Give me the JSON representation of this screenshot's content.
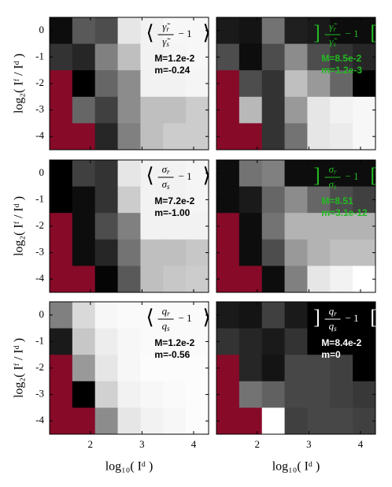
{
  "chart_data": [
    {
      "type": "heatmap",
      "x": [
        1.43,
        1.87,
        2.31,
        2.75,
        3.19,
        3.63,
        4.07
      ],
      "y": [
        0,
        -1,
        -2,
        -3,
        -4
      ],
      "xlim": [
        1.21,
        4.29
      ],
      "ylim": [
        -4.5,
        0.5
      ],
      "xticks": [
        2,
        3,
        4
      ],
      "yticks": [
        0,
        -1,
        -2,
        -3,
        -4
      ],
      "cmap": "gray",
      "missing_color": "#870a28",
      "ylabel": "log₂( Iᶠ / Iᵈ )",
      "values": [
        [
          0.05,
          0.35,
          0.3,
          0.9,
          0.95,
          0.97,
          0.97
        ],
        [
          0.2,
          0.15,
          0.5,
          0.75,
          0.95,
          0.96,
          0.97
        ],
        [
          null,
          0.0,
          0.4,
          0.55,
          0.95,
          0.95,
          0.96
        ],
        [
          null,
          0.4,
          0.25,
          0.55,
          0.75,
          0.75,
          0.8
        ],
        [
          null,
          null,
          0.15,
          0.5,
          0.75,
          0.8,
          0.8
        ]
      ],
      "annotation": {
        "open": "⟨",
        "close": "⟩",
        "num": "γ̃",
        "num_sub": "r",
        "den": "γ̃",
        "den_sub": "s",
        "rest": "− 1",
        "M": "M=1.2e-2",
        "m": "m=-0.24",
        "color": "#000000"
      }
    },
    {
      "type": "heatmap",
      "x": [
        1.43,
        1.87,
        2.31,
        2.75,
        3.19,
        3.63,
        4.07
      ],
      "y": [
        0,
        -1,
        -2,
        -3,
        -4
      ],
      "xlim": [
        1.21,
        4.29
      ],
      "ylim": [
        -4.5,
        0.5
      ],
      "xticks": [
        2,
        3,
        4
      ],
      "yticks": [
        0,
        -1,
        -2,
        -3,
        -4
      ],
      "cmap": "gray",
      "missing_color": "#870a28",
      "values": [
        [
          0.1,
          0.08,
          0.45,
          0.12,
          0.1,
          0.05,
          0.05
        ],
        [
          0.3,
          0.05,
          0.3,
          0.55,
          0.3,
          0.2,
          0.15
        ],
        [
          null,
          0.3,
          0.2,
          0.75,
          0.6,
          0.4,
          0.0
        ],
        [
          null,
          0.72,
          0.2,
          0.6,
          0.9,
          0.95,
          0.97
        ],
        [
          null,
          null,
          0.2,
          0.45,
          0.9,
          0.92,
          0.97
        ]
      ],
      "annotation": {
        "open": "]",
        "close": "[",
        "num": "γ̃",
        "num_sub": "r",
        "den": "γ̃",
        "den_sub": "s",
        "rest": "− 1",
        "M": "M=8.5e-2",
        "m": "m=1.2e-3",
        "color": "#22bb22"
      }
    },
    {
      "type": "heatmap",
      "x": [
        1.43,
        1.87,
        2.31,
        2.75,
        3.19,
        3.63,
        4.07
      ],
      "y": [
        0,
        -1,
        -2,
        -3,
        -4
      ],
      "xlim": [
        1.21,
        4.29
      ],
      "ylim": [
        -4.5,
        0.5
      ],
      "xticks": [
        2,
        3,
        4
      ],
      "yticks": [
        0,
        -1,
        -2,
        -3,
        -4
      ],
      "cmap": "gray",
      "missing_color": "#870a28",
      "ylabel": "log₂( Iᶠ / Iᵈ )",
      "values": [
        [
          0.0,
          0.25,
          0.2,
          0.9,
          0.95,
          0.95,
          0.96
        ],
        [
          0.0,
          0.05,
          0.2,
          0.8,
          0.95,
          0.95,
          0.96
        ],
        [
          null,
          0.05,
          0.3,
          0.5,
          0.95,
          0.95,
          0.95
        ],
        [
          null,
          0.05,
          0.15,
          0.45,
          0.75,
          0.75,
          0.78
        ],
        [
          null,
          null,
          0.02,
          0.35,
          0.75,
          0.78,
          0.8
        ]
      ],
      "annotation": {
        "open": "⟨",
        "close": "⟩",
        "num": "σ",
        "num_sub": "r",
        "den": "σ",
        "den_sub": "s",
        "rest": "− 1",
        "M": "M=7.2e-2",
        "m": "m=-1.00",
        "color": "#000000"
      }
    },
    {
      "type": "heatmap",
      "x": [
        1.43,
        1.87,
        2.31,
        2.75,
        3.19,
        3.63,
        4.07
      ],
      "y": [
        0,
        -1,
        -2,
        -3,
        -4
      ],
      "xlim": [
        1.21,
        4.29
      ],
      "ylim": [
        -4.5,
        0.5
      ],
      "xticks": [
        2,
        3,
        4
      ],
      "yticks": [
        0,
        -1,
        -2,
        -3,
        -4
      ],
      "cmap": "gray",
      "missing_color": "#870a28",
      "values": [
        [
          0.05,
          0.45,
          0.5,
          0.05,
          0.05,
          0.05,
          0.05
        ],
        [
          0.05,
          0.1,
          0.4,
          0.55,
          0.4,
          0.3,
          0.25
        ],
        [
          null,
          0.05,
          0.45,
          0.7,
          0.7,
          0.7,
          0.7
        ],
        [
          null,
          0.05,
          0.3,
          0.6,
          0.7,
          0.75,
          0.75
        ],
        [
          null,
          null,
          0.05,
          0.5,
          0.9,
          0.95,
          1.0
        ]
      ],
      "annotation": {
        "open": "]",
        "close": "[",
        "num": "σ",
        "num_sub": "r",
        "den": "σ",
        "den_sub": "s",
        "rest": "− 1",
        "M": "M=8.51",
        "m": "m=3.1e-12",
        "color": "#22bb22"
      }
    },
    {
      "type": "heatmap",
      "x": [
        1.43,
        1.87,
        2.31,
        2.75,
        3.19,
        3.63,
        4.07
      ],
      "y": [
        0,
        -1,
        -2,
        -3,
        -4
      ],
      "xlim": [
        1.21,
        4.29
      ],
      "ylim": [
        -4.5,
        0.5
      ],
      "xticks": [
        2,
        3,
        4
      ],
      "yticks": [
        0,
        -1,
        -2,
        -3,
        -4
      ],
      "cmap": "gray",
      "missing_color": "#870a28",
      "ylabel": "log₂( Iᶠ / Iᵈ )",
      "xlabel": "log₁₀( Iᵈ )",
      "values": [
        [
          0.5,
          0.85,
          0.97,
          0.98,
          0.98,
          0.98,
          0.98
        ],
        [
          0.1,
          0.78,
          0.93,
          0.97,
          0.98,
          0.98,
          0.98
        ],
        [
          null,
          0.6,
          0.9,
          0.97,
          0.99,
          0.99,
          0.99
        ],
        [
          null,
          0.0,
          0.82,
          0.95,
          0.97,
          0.98,
          0.99
        ],
        [
          null,
          null,
          0.55,
          0.9,
          0.95,
          0.97,
          0.99
        ]
      ],
      "annotation": {
        "open": "⟨",
        "close": "⟩",
        "num": "q",
        "num_sub": "r",
        "den": "q",
        "den_sub": "s",
        "rest": "− 1",
        "M": "M=1.2e-2",
        "m": "m=-0.56",
        "color": "#000000"
      }
    },
    {
      "type": "heatmap",
      "x": [
        1.43,
        1.87,
        2.31,
        2.75,
        3.19,
        3.63,
        4.07
      ],
      "y": [
        0,
        -1,
        -2,
        -3,
        -4
      ],
      "xlim": [
        1.21,
        4.29
      ],
      "ylim": [
        -4.5,
        0.5
      ],
      "xticks": [
        2,
        3,
        4
      ],
      "yticks": [
        0,
        -1,
        -2,
        -3,
        -4
      ],
      "cmap": "gray",
      "missing_color": "#870a28",
      "xlabel": "log₁₀( Iᵈ )",
      "values": [
        [
          0.1,
          0.08,
          0.25,
          0.1,
          0.0,
          0.0,
          0.0
        ],
        [
          0.2,
          0.15,
          0.1,
          0.2,
          0.0,
          0.0,
          0.0
        ],
        [
          null,
          0.15,
          0.08,
          0.28,
          0.28,
          0.25,
          0.0
        ],
        [
          null,
          0.45,
          0.38,
          0.28,
          0.28,
          0.25,
          0.22
        ],
        [
          null,
          null,
          1.0,
          0.25,
          0.28,
          0.28,
          0.25
        ]
      ],
      "annotation": {
        "open": "]",
        "close": "[",
        "num": "q",
        "num_sub": "r",
        "den": "q",
        "den_sub": "s",
        "rest": "− 1",
        "M": "M=8.4e-2",
        "m": "m=0",
        "color": "#ffffff"
      }
    }
  ]
}
